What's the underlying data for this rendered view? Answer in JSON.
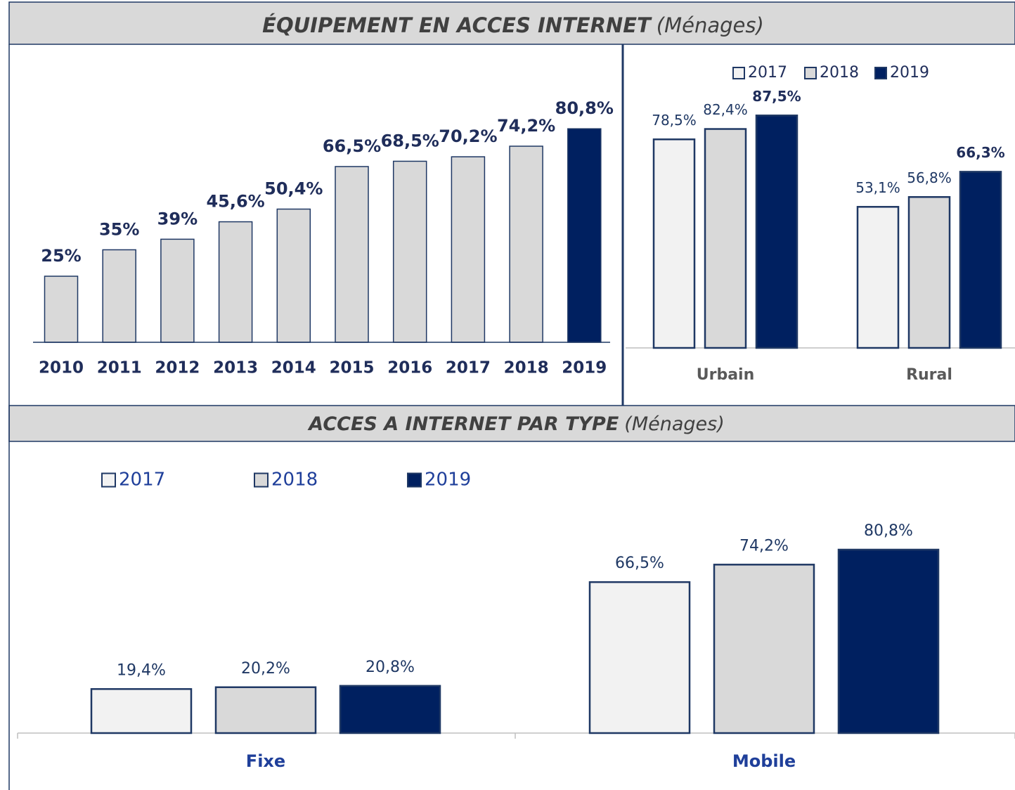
{
  "sections": [
    {
      "title": "ÉQUIPEMENT EN ACCES INTERNET",
      "subtitle": "(Ménages)"
    },
    {
      "title": "ACCES A INTERNET PAR TYPE",
      "subtitle": "(Ménages)"
    }
  ],
  "chart_data": [
    {
      "type": "bar",
      "categories": [
        "2010",
        "2011",
        "2012",
        "2013",
        "2014",
        "2015",
        "2016",
        "2017",
        "2018",
        "2019"
      ],
      "values": [
        25,
        35,
        39,
        45.6,
        50.4,
        66.5,
        68.5,
        70.2,
        74.2,
        80.8
      ],
      "value_labels": [
        "25%",
        "35%",
        "39%",
        "45,6%",
        "50,4%",
        "66,5%",
        "68,5%",
        "70,2%",
        "74,2%",
        "80,8%"
      ],
      "colors": [
        "#d9d9d9",
        "#d9d9d9",
        "#d9d9d9",
        "#d9d9d9",
        "#d9d9d9",
        "#d9d9d9",
        "#d9d9d9",
        "#d9d9d9",
        "#d9d9d9",
        "#002060"
      ],
      "ylim": [
        0,
        100
      ]
    },
    {
      "type": "grouped_bar",
      "categories": [
        "Urbain",
        "Rural"
      ],
      "series": [
        {
          "name": "2017",
          "color": "#f2f2f2",
          "values": [
            78.5,
            53.1
          ],
          "value_labels": [
            "78,5%",
            "53,1%"
          ]
        },
        {
          "name": "2018",
          "color": "#d9d9d9",
          "values": [
            82.4,
            56.8
          ],
          "value_labels": [
            "82,4%",
            "56,8%"
          ]
        },
        {
          "name": "2019",
          "color": "#002060",
          "values": [
            87.5,
            66.3
          ],
          "value_labels": [
            "87,5%",
            "66,3%"
          ]
        }
      ],
      "ylim": [
        0,
        100
      ],
      "legend": "top"
    },
    {
      "type": "grouped_bar",
      "categories": [
        "Fixe",
        "Mobile"
      ],
      "series": [
        {
          "name": "2017",
          "color": "#f2f2f2",
          "values": [
            19.4,
            66.5
          ],
          "value_labels": [
            "19,4%",
            "66,5%"
          ]
        },
        {
          "name": "2018",
          "color": "#d9d9d9",
          "values": [
            20.2,
            74.2
          ],
          "value_labels": [
            "20,2%",
            "74,2%"
          ]
        },
        {
          "name": "2019",
          "color": "#002060",
          "values": [
            20.8,
            80.8
          ],
          "value_labels": [
            "20,8%",
            "80,8%"
          ]
        }
      ],
      "ylim": [
        0,
        100
      ],
      "legend": "top"
    }
  ]
}
